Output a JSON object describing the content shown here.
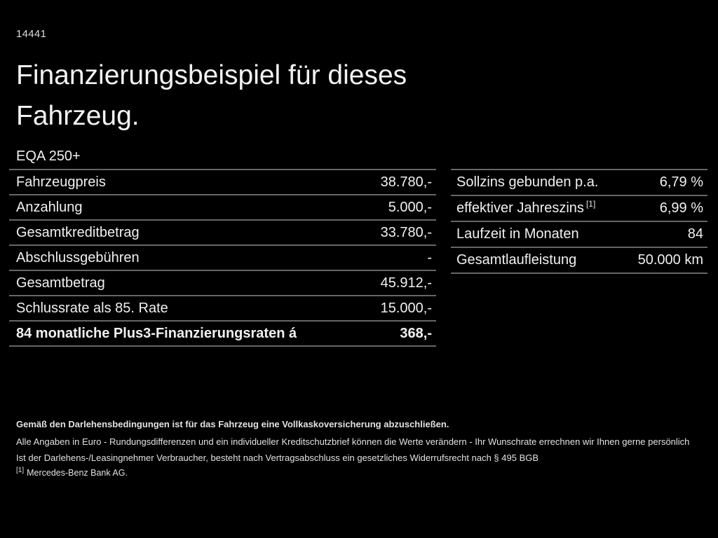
{
  "page": {
    "doc_id": "14441",
    "title": "Finanzierungsbeispiel für dieses Fahrzeug."
  },
  "colors": {
    "background": "#000000",
    "text": "#f0f0f0",
    "divider": "#666666"
  },
  "left_table": {
    "header": "EQA 250+",
    "rows": [
      {
        "label": "Fahrzeugpreis",
        "value": "38.780,-"
      },
      {
        "label": "Anzahlung",
        "value": "5.000,-"
      },
      {
        "label": "Gesamtkreditbetrag",
        "value": "33.780,-"
      },
      {
        "label": "Abschlussgebühren",
        "value": "-"
      },
      {
        "label": "Gesamtbetrag",
        "value": "45.912,-"
      },
      {
        "label": "Schlussrate als 85. Rate",
        "value": "15.000,-"
      },
      {
        "label": "84 monatliche Plus3-Finanzierungsraten á",
        "value": "368,-"
      }
    ]
  },
  "right_table": {
    "rows": [
      {
        "label": "Sollzins gebunden p.a.",
        "value": "6,79 %"
      },
      {
        "label": "effektiver Jahreszins",
        "sup": "[1]",
        "value": "6,99 %"
      },
      {
        "label": "Laufzeit in Monaten",
        "value": "84"
      },
      {
        "label": "Gesamtlaufleistung",
        "value": "50.000 km"
      }
    ]
  },
  "footer": {
    "note_bold": "Gemäß den Darlehensbedingungen ist für das Fahrzeug eine Vollkaskoversicherung abzuschließen.",
    "line2": "Alle Angaben in Euro - Rundungsdifferenzen und ein individueller Kreditschutzbrief können die Werte verändern - Ihr Wunschrate errechnen wir Ihnen gerne persönlich",
    "line3": "Ist der Darlehens-/Leasingnehmer Verbraucher, besteht nach Vertragsabschluss ein gesetzliches Widerrufsrecht nach § 495 BGB",
    "footnote_marker": "[1]",
    "footnote_text": "Mercedes-Benz Bank AG."
  }
}
